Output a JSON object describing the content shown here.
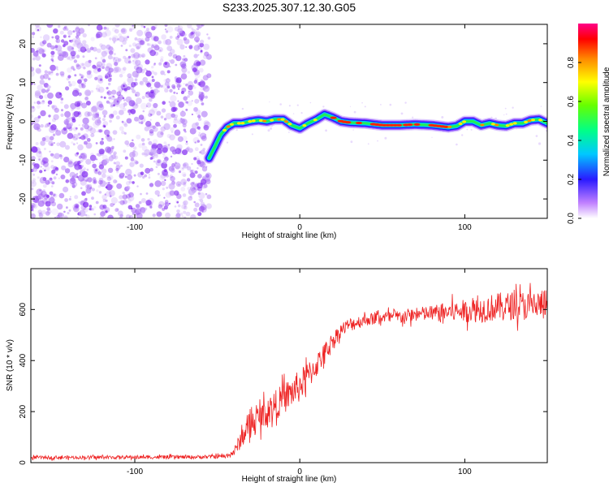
{
  "title": "S233.2025.307.12.30.G05",
  "colors": {
    "snr_line": "#ee2222",
    "axis": "#000000",
    "noise_dot": "#8a2be2"
  },
  "chart_data": [
    {
      "type": "heatmap",
      "id": "spectrogram",
      "xlabel": "Height of straight line (km)",
      "ylabel": "Frequency (Hz)",
      "xlim": [
        -163,
        150
      ],
      "ylim": [
        -25,
        25
      ],
      "xticks": [
        -100,
        0,
        100
      ],
      "xtick_labels": [
        "-100",
        "0",
        "100"
      ],
      "yticks": [
        -20,
        -10,
        0,
        10,
        20
      ],
      "ytick_labels": [
        "-20",
        "-10",
        "0",
        "10",
        "20"
      ],
      "noise_region_x": [
        -163,
        -55
      ],
      "ridge": {
        "x": [
          -55,
          -52,
          -48,
          -44,
          -40,
          -35,
          -30,
          -25,
          -20,
          -15,
          -10,
          -5,
          0,
          5,
          10,
          15,
          20,
          25,
          30,
          40,
          50,
          60,
          70,
          80,
          90,
          95,
          100,
          105,
          110,
          115,
          120,
          125,
          130,
          135,
          140,
          145,
          150
        ],
        "freq": [
          -9.5,
          -7,
          -3.5,
          -1.5,
          -0.5,
          -0.5,
          0,
          0.3,
          0,
          0.5,
          0.5,
          -1,
          -1.8,
          -0.5,
          0.5,
          1.8,
          1,
          0,
          -0.3,
          -0.5,
          -1,
          -1,
          -0.8,
          -1,
          -1.5,
          -1.2,
          0,
          0,
          -1,
          -0.5,
          -1,
          -1.2,
          -0.5,
          -0.5,
          0.3,
          0.5,
          -0.5
        ]
      },
      "colorbar": {
        "label": "Normalized spectral amplitude",
        "range": [
          0,
          1
        ],
        "ticks": [
          0.0,
          0.2,
          0.4,
          0.6,
          0.8
        ],
        "tick_labels": [
          "0.0",
          "0.2",
          "0.4",
          "0.6",
          "0.8"
        ]
      }
    },
    {
      "type": "line",
      "id": "snr",
      "xlabel": "Height of straight line (km)",
      "ylabel": "SNR (10 * v/v)",
      "xlim": [
        -163,
        150
      ],
      "ylim": [
        0,
        760
      ],
      "xticks": [
        -100,
        0,
        100
      ],
      "xtick_labels": [
        "-100",
        "0",
        "100"
      ],
      "yticks": [
        0,
        200,
        400,
        600
      ],
      "ytick_labels": [
        "0",
        "200",
        "400",
        "600"
      ],
      "envelope": {
        "x": [
          -163,
          -60,
          -45,
          -40,
          -35,
          -30,
          -20,
          -10,
          0,
          10,
          15,
          20,
          25,
          30,
          40,
          50,
          60,
          70,
          80,
          90,
          100,
          110,
          120,
          130,
          140,
          150
        ],
        "mean": [
          20,
          22,
          25,
          40,
          100,
          150,
          200,
          250,
          300,
          380,
          430,
          480,
          520,
          540,
          560,
          570,
          570,
          580,
          585,
          590,
          595,
          600,
          610,
          615,
          615,
          620
        ],
        "amp": [
          8,
          9,
          10,
          20,
          50,
          60,
          70,
          75,
          80,
          60,
          50,
          40,
          35,
          35,
          30,
          30,
          35,
          35,
          40,
          50,
          55,
          65,
          70,
          70,
          75,
          80
        ]
      }
    }
  ]
}
